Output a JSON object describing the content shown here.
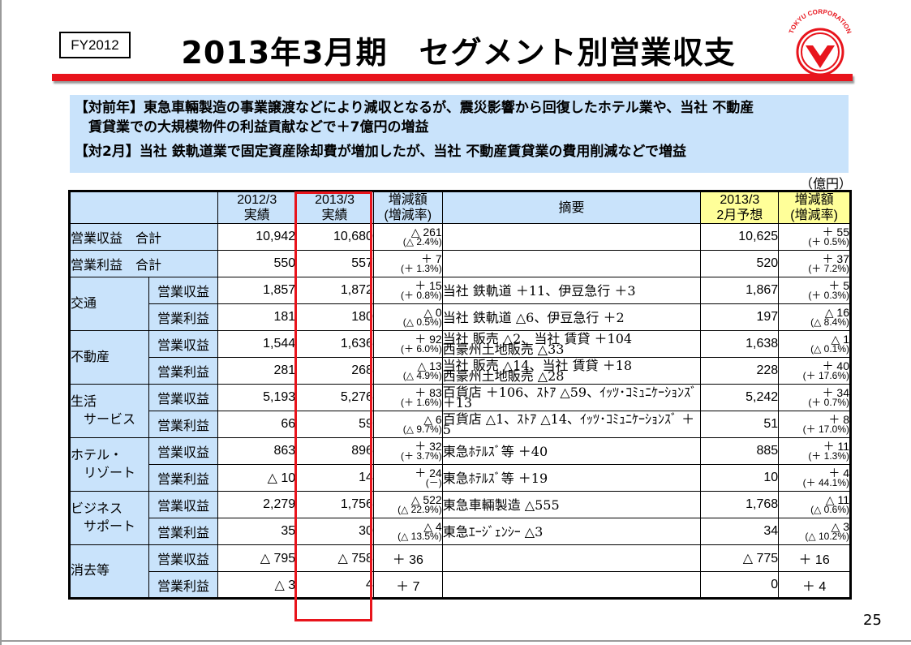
{
  "header": {
    "badge": "FY2012",
    "title": "2013年3月期　セグメント別営業収支",
    "logo_text": "TOKYU CORPORATION",
    "logo_icon": "tokyu-logo-icon"
  },
  "info": {
    "line1": "【対前年】東急車輛製造の事業譲渡などにより減収となるが、震災影響から回復したホテル業や、当社 不動産",
    "line2": "　賃貸業での大規模物件の利益貢献などで＋7億円の増益",
    "line3": "【対2月】当社 鉄軌道業で固定資産除却費が増加したが、当社 不動産賃貸業の費用削減などで増益"
  },
  "unit": "（億円）",
  "columns": {
    "c1a": "2012/3",
    "c1b": "実績",
    "c2a": "2013/3",
    "c2b": "実績",
    "c3a": "増減額",
    "c3b": "(増減率)",
    "c4": "摘要",
    "c5a": "2013/3",
    "c5b": "2月予想",
    "c6a": "増減額",
    "c6b": "(増減率)"
  },
  "totals": [
    {
      "label": "営業収益　合計",
      "v2012": "10,942",
      "v2013": "10,680",
      "chg_a": "△ 261",
      "chg_b": "(△ 2.4%)",
      "note": "",
      "forecast": "10,625",
      "fc_a": "＋ 55",
      "fc_b": "(＋ 0.5%)"
    },
    {
      "label": "営業利益　合計",
      "v2012": "550",
      "v2013": "557",
      "chg_a": "＋ 7",
      "chg_b": "(＋ 1.3%)",
      "note": "",
      "forecast": "520",
      "fc_a": "＋ 37",
      "fc_b": "(＋ 7.2%)"
    }
  ],
  "segments": [
    {
      "name": "交通",
      "rows": [
        {
          "sub": "営業収益",
          "v2012": "1,857",
          "v2013": "1,872",
          "chg_a": "＋ 15",
          "chg_b": "(＋ 0.8%)",
          "note1": "当社 鉄軌道 ＋11、伊豆急行 ＋3",
          "note2": "",
          "forecast": "1,867",
          "fc_a": "＋ 5",
          "fc_b": "(＋ 0.3%)"
        },
        {
          "sub": "営業利益",
          "v2012": "181",
          "v2013": "180",
          "chg_a": "△ 0",
          "chg_b": "(△ 0.5%)",
          "note1": "当社 鉄軌道 △6、伊豆急行 ＋2",
          "note2": "",
          "forecast": "197",
          "fc_a": "△ 16",
          "fc_b": "(△ 8.4%)"
        }
      ]
    },
    {
      "name": "不動産",
      "rows": [
        {
          "sub": "営業収益",
          "v2012": "1,544",
          "v2013": "1,636",
          "chg_a": "＋ 92",
          "chg_b": "(＋ 6.0%)",
          "note1": "当社 販売 △2、当社 賃貸 ＋104",
          "note2": "西豪州土地販売 △33",
          "forecast": "1,638",
          "fc_a": "△ 1",
          "fc_b": "(△ 0.1%)"
        },
        {
          "sub": "営業利益",
          "v2012": "281",
          "v2013": "268",
          "chg_a": "△ 13",
          "chg_b": "(△ 4.9%)",
          "note1": "当社 販売 △14、当社 賃貸 ＋18",
          "note2": "西豪州土地販売 △28",
          "forecast": "228",
          "fc_a": "＋ 40",
          "fc_b": "(＋ 17.6%)"
        }
      ]
    },
    {
      "name": "生活\n　サービス",
      "rows": [
        {
          "sub": "営業収益",
          "v2012": "5,193",
          "v2013": "5,276",
          "chg_a": "＋ 83",
          "chg_b": "(＋ 1.6%)",
          "note1": "百貨店 ＋106、ｽﾄｱ △59、ｲｯﾂ･ｺﾐｭﾆｹｰｼｮﾝｽﾞ ＋13",
          "note2": "",
          "forecast": "5,242",
          "fc_a": "＋ 34",
          "fc_b": "(＋ 0.7%)"
        },
        {
          "sub": "営業利益",
          "v2012": "66",
          "v2013": "59",
          "chg_a": "△ 6",
          "chg_b": "(△ 9.7%)",
          "note1": "百貨店 △1、ｽﾄｱ △14、ｲｯﾂ･ｺﾐｭﾆｹｰｼｮﾝｽﾞ ＋5",
          "note2": "",
          "forecast": "51",
          "fc_a": "＋ 8",
          "fc_b": "(＋ 17.0%)"
        }
      ]
    },
    {
      "name": "ホテル・\n　リゾート",
      "rows": [
        {
          "sub": "営業収益",
          "v2012": "863",
          "v2013": "896",
          "chg_a": "＋ 32",
          "chg_b": "(＋ 3.7%)",
          "note1": "東急ﾎﾃﾙｽﾞ等 ＋40",
          "note2": "",
          "forecast": "885",
          "fc_a": "＋ 11",
          "fc_b": "(＋ 1.3%)"
        },
        {
          "sub": "営業利益",
          "v2012": "△ 10",
          "v2013": "14",
          "chg_a": "＋ 24",
          "chg_b": "(－)",
          "note1": "東急ﾎﾃﾙｽﾞ等 ＋19",
          "note2": "",
          "forecast": "10",
          "fc_a": "＋ 4",
          "fc_b": "(＋ 44.1%)"
        }
      ]
    },
    {
      "name": "ビジネス\n　サポート",
      "rows": [
        {
          "sub": "営業収益",
          "v2012": "2,279",
          "v2013": "1,756",
          "chg_a": "△ 522",
          "chg_b": "(△ 22.9%)",
          "note1": "東急車輛製造 △555",
          "note2": "",
          "forecast": "1,768",
          "fc_a": "△ 11",
          "fc_b": "(△ 0.6%)"
        },
        {
          "sub": "営業利益",
          "v2012": "35",
          "v2013": "30",
          "chg_a": "△ 4",
          "chg_b": "(△ 13.5%)",
          "note1": "東急ｴｰｼﾞｪﾝｼｰ △3",
          "note2": "",
          "forecast": "34",
          "fc_a": "△ 3",
          "fc_b": "(△ 10.2%)"
        }
      ]
    },
    {
      "name": "消去等",
      "rows": [
        {
          "sub": "営業収益",
          "v2012": "△ 795",
          "v2013": "△ 758",
          "chg_a": "＋ 36",
          "chg_b": "",
          "note1": "",
          "note2": "",
          "forecast": "△ 775",
          "fc_a": "＋ 16",
          "fc_b": ""
        },
        {
          "sub": "営業利益",
          "v2012": "△ 3",
          "v2013": "4",
          "chg_a": "＋ 7",
          "chg_b": "",
          "note1": "",
          "note2": "",
          "forecast": "0",
          "fc_a": "＋ 4",
          "fc_b": ""
        }
      ]
    }
  ],
  "page_number": "25"
}
